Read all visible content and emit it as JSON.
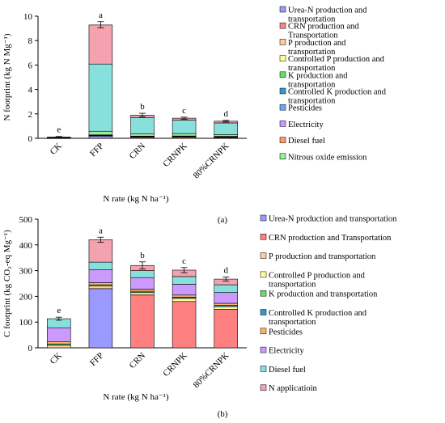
{
  "chart_data": [
    {
      "panel_label": "(a)",
      "type": "bar",
      "stacked": true,
      "categories": [
        "CK",
        "FFP",
        "CRN",
        "CRNPK",
        "80%CRNPK"
      ],
      "ylabel": "N footprint (kg N Mg⁻¹)",
      "xlabel": "N rate (kg N ha⁻¹)",
      "ylim": [
        0,
        10
      ],
      "yticks": [
        0,
        2,
        4,
        6,
        8,
        10
      ],
      "significance_letters": [
        "e",
        "a",
        "b",
        "c",
        "d"
      ],
      "totals": [
        0.1,
        9.3,
        1.9,
        1.65,
        1.4
      ],
      "error": [
        0.05,
        0.25,
        0.15,
        0.08,
        0.07
      ],
      "legend_position": "right",
      "series": [
        {
          "name": "Urea-N production and transportation",
          "color": "#9999ff",
          "values": [
            0,
            0.2,
            0,
            0,
            0
          ]
        },
        {
          "name": "CRN production and Transportation",
          "color": "#ff8080",
          "values": [
            0,
            0,
            0.1,
            0.1,
            0.08
          ]
        },
        {
          "name": "P production and transportation",
          "color": "#ffcc99",
          "values": [
            0.02,
            0.02,
            0.02,
            0,
            0
          ]
        },
        {
          "name": "Controlled P production and transportation",
          "color": "#ffff99",
          "values": [
            0,
            0,
            0,
            0.03,
            0.02
          ]
        },
        {
          "name": "K production and transportation",
          "color": "#66dd66",
          "values": [
            0.01,
            0.01,
            0.01,
            0,
            0
          ]
        },
        {
          "name": "Controlled K production and transportation",
          "color": "#3399cc",
          "values": [
            0,
            0,
            0,
            0.01,
            0.01
          ]
        },
        {
          "name": "Pesticides",
          "color": "#66aaff",
          "values": [
            0.01,
            0.01,
            0.01,
            0.01,
            0.01
          ]
        },
        {
          "name": "Electricity",
          "color": "#cc99ff",
          "values": [
            0.03,
            0.03,
            0.03,
            0.03,
            0.03
          ]
        },
        {
          "name": "Diesel fuel",
          "color": "#ff9966",
          "values": [
            0.01,
            0.01,
            0.01,
            0.01,
            0.01
          ]
        },
        {
          "name": "Nitrous oxide emission",
          "color": "#99ee99",
          "values": [
            0.02,
            0.3,
            0.2,
            0.2,
            0.15
          ]
        },
        {
          "name": "",
          "color": "#88e0dc",
          "values": [
            0,
            5.5,
            1.3,
            1.1,
            0.95
          ]
        },
        {
          "name": "",
          "color": "#f4a1b0",
          "values": [
            0,
            3.2,
            0.22,
            0.16,
            0.14
          ]
        }
      ]
    },
    {
      "panel_label": "(b)",
      "type": "bar",
      "stacked": true,
      "categories": [
        "CK",
        "FFP",
        "CRN",
        "CRNPK",
        "80%CRNPK"
      ],
      "ylabel": "C footprint (kg CO₂-eq Mg⁻¹)",
      "xlabel": "N rate (kg N ha⁻¹)",
      "ylim": [
        0,
        500
      ],
      "yticks": [
        0,
        100,
        200,
        300,
        400,
        500
      ],
      "significance_letters": [
        "e",
        "a",
        "b",
        "c",
        "d"
      ],
      "totals": [
        113,
        420,
        320,
        302,
        267
      ],
      "error": [
        6,
        10,
        14,
        10,
        8
      ],
      "legend_position": "right",
      "series": [
        {
          "name": "Urea-N production and transportation",
          "color": "#9999ff",
          "values": [
            0,
            230,
            0,
            0,
            0
          ]
        },
        {
          "name": "CRN production and Transportation",
          "color": "#ff8080",
          "values": [
            0,
            0,
            205,
            180,
            150
          ]
        },
        {
          "name": "P production and transportation",
          "color": "#ffcc99",
          "values": [
            10,
            10,
            10,
            0,
            0
          ]
        },
        {
          "name": "Controlled P production and transportation",
          "color": "#ffff99",
          "values": [
            0,
            0,
            0,
            12,
            10
          ]
        },
        {
          "name": "K production and transportation",
          "color": "#66dd66",
          "values": [
            5,
            5,
            5,
            0,
            0
          ]
        },
        {
          "name": "Controlled K production and transportation",
          "color": "#3399cc",
          "values": [
            0,
            0,
            0,
            5,
            5
          ]
        },
        {
          "name": "Pesticides",
          "color": "#ffb366",
          "values": [
            8,
            8,
            8,
            8,
            8
          ]
        },
        {
          "name": "Electricity",
          "color": "#cc99ff",
          "values": [
            55,
            50,
            45,
            42,
            42
          ]
        },
        {
          "name": "Diesel fuel",
          "color": "#88e0dc",
          "values": [
            35,
            30,
            27,
            30,
            30
          ]
        },
        {
          "name": "N applicatioin",
          "color": "#f4a1b0",
          "values": [
            0,
            87,
            20,
            25,
            22
          ]
        }
      ]
    }
  ]
}
